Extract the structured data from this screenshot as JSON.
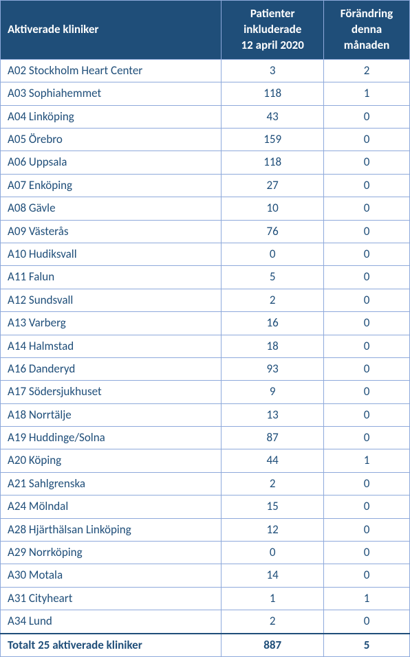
{
  "styling": {
    "header_bg": "#1f4e79",
    "header_text": "#ffffff",
    "body_text": "#1f4e79",
    "border_color": "#8ea9db",
    "total_border_color": "#1f4e79",
    "font_family": "Calibri, 'Segoe UI', Arial, sans-serif",
    "header_fontsize": 17,
    "body_fontsize": 17
  },
  "table": {
    "type": "table",
    "columns": [
      {
        "key": "name",
        "label": "Aktiverade kliniker",
        "align": "left"
      },
      {
        "key": "patients",
        "label": "Patienter inkluderade 12 april 2020",
        "align": "center"
      },
      {
        "key": "change",
        "label": "Förändring denna månaden",
        "align": "center"
      }
    ],
    "header_lines": {
      "col1": [
        "Aktiverade kliniker"
      ],
      "col2": [
        "Patienter",
        "inkluderade",
        "12 april 2020"
      ],
      "col3": [
        "Förändring",
        "denna",
        "månaden"
      ]
    },
    "rows": [
      {
        "name": "A02 Stockholm Heart Center",
        "patients": 3,
        "change": 2
      },
      {
        "name": "A03 Sophiahemmet",
        "patients": 118,
        "change": 1
      },
      {
        "name": "A04 Linköping",
        "patients": 43,
        "change": 0
      },
      {
        "name": "A05 Örebro",
        "patients": 159,
        "change": 0
      },
      {
        "name": "A06 Uppsala",
        "patients": 118,
        "change": 0
      },
      {
        "name": "A07 Enköping",
        "patients": 27,
        "change": 0
      },
      {
        "name": "A08 Gävle",
        "patients": 10,
        "change": 0
      },
      {
        "name": "A09 Västerås",
        "patients": 76,
        "change": 0
      },
      {
        "name": "A10 Hudiksvall",
        "patients": 0,
        "change": 0
      },
      {
        "name": "A11 Falun",
        "patients": 5,
        "change": 0
      },
      {
        "name": "A12 Sundsvall",
        "patients": 2,
        "change": 0
      },
      {
        "name": "A13 Varberg",
        "patients": 16,
        "change": 0
      },
      {
        "name": "A14 Halmstad",
        "patients": 18,
        "change": 0
      },
      {
        "name": "A16 Danderyd",
        "patients": 93,
        "change": 0
      },
      {
        "name": "A17 Södersjukhuset",
        "patients": 9,
        "change": 0
      },
      {
        "name": "A18 Norrtälje",
        "patients": 13,
        "change": 0
      },
      {
        "name": "A19 Huddinge/Solna",
        "patients": 87,
        "change": 0
      },
      {
        "name": "A20 Köping",
        "patients": 44,
        "change": 1
      },
      {
        "name": "A21 Sahlgrenska",
        "patients": 2,
        "change": 0
      },
      {
        "name": "A24 Mölndal",
        "patients": 15,
        "change": 0
      },
      {
        "name": "A28 Hjärthälsan Linköping",
        "patients": 12,
        "change": 0
      },
      {
        "name": "A29 Norrköping",
        "patients": 0,
        "change": 0
      },
      {
        "name": "A30 Motala",
        "patients": 14,
        "change": 0
      },
      {
        "name": "A31 Cityheart",
        "patients": 1,
        "change": 1
      },
      {
        "name": "A34 Lund",
        "patients": 2,
        "change": 0
      }
    ],
    "total": {
      "label": "Totalt 25 aktiverade kliniker",
      "patients": 887,
      "change": 5
    }
  }
}
